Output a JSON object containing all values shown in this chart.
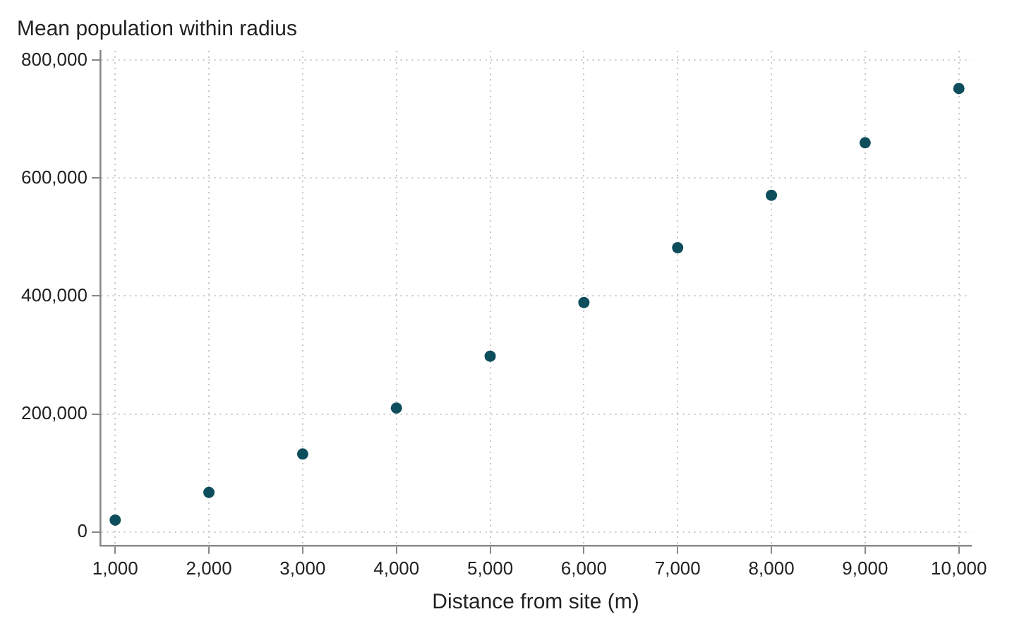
{
  "chart_data": {
    "type": "scatter",
    "ylabel": "Mean population within radius",
    "xlabel": "Distance from site (m)",
    "x": [
      1000,
      2000,
      3000,
      4000,
      5000,
      6000,
      7000,
      8000,
      9000,
      10000
    ],
    "series": [
      {
        "color": "#0d4d5c",
        "values": [
          20000,
          67000,
          132000,
          210000,
          298000,
          389000,
          482000,
          571000,
          660000,
          752000
        ]
      }
    ],
    "xlim": [
      840,
      10130
    ],
    "ylim": [
      -23000,
      816000
    ],
    "xticks": [
      {
        "value": 1000,
        "label": "1,000"
      },
      {
        "value": 2000,
        "label": "2,000"
      },
      {
        "value": 3000,
        "label": "3,000"
      },
      {
        "value": 4000,
        "label": "4,000"
      },
      {
        "value": 5000,
        "label": "5,000"
      },
      {
        "value": 6000,
        "label": "6,000"
      },
      {
        "value": 7000,
        "label": "7,000"
      },
      {
        "value": 8000,
        "label": "8,000"
      },
      {
        "value": 9000,
        "label": "9,000"
      },
      {
        "value": 10000,
        "label": "10,000"
      }
    ],
    "yticks": [
      {
        "value": 0,
        "label": "0"
      },
      {
        "value": 200000,
        "label": "200,000"
      },
      {
        "value": 400000,
        "label": "400,000"
      },
      {
        "value": 600000,
        "label": "600,000"
      },
      {
        "value": 800000,
        "label": "800,000"
      }
    ],
    "grid": true,
    "marker": "circle",
    "legend": false
  }
}
